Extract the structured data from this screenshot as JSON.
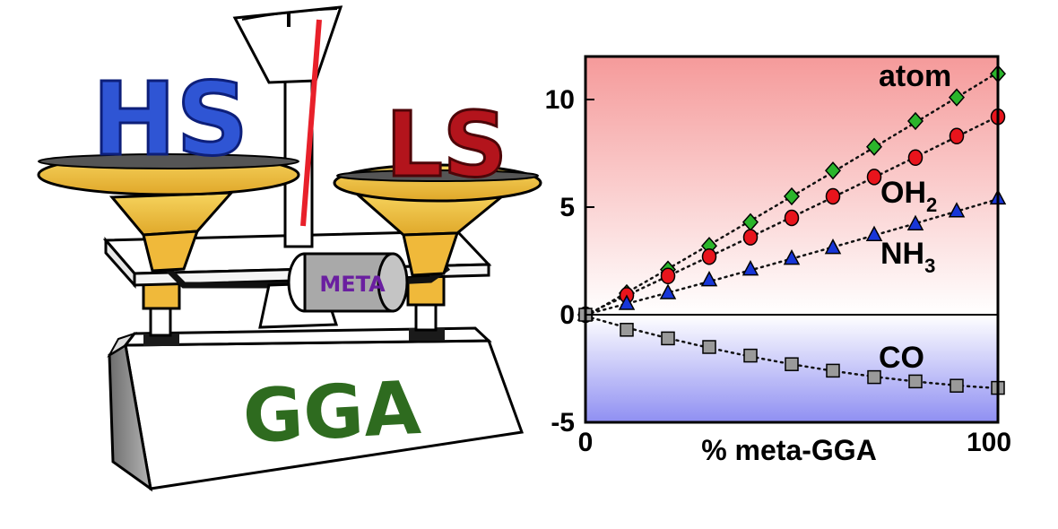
{
  "illustration": {
    "left_pan_label": "HS",
    "right_pan_label": "LS",
    "weight_label": "META",
    "base_label": "GGA",
    "colors": {
      "hs": "#2f55d4",
      "ls": "#b3141c",
      "meta_text": "#6a1fa0",
      "gga_text": "#2e6b1f",
      "pan_gold": "#f2c23a",
      "needle": "#e8202a"
    }
  },
  "chart_data": {
    "type": "scatter",
    "title": "",
    "xlabel": "% meta-GGA",
    "ylabel": "",
    "xlim": [
      0,
      100
    ],
    "ylim": [
      -5,
      12
    ],
    "x_ticks": [
      0,
      100
    ],
    "y_ticks": [
      -5,
      0,
      5,
      10
    ],
    "grid": false,
    "background": {
      "positive_color": "#f59a9a",
      "negative_color": "#8f8ff2"
    },
    "series": [
      {
        "name": "atom",
        "marker": "diamond",
        "color": "#2bb52b",
        "trend_line": "dotted",
        "x": [
          0,
          10,
          20,
          30,
          40,
          50,
          60,
          70,
          80,
          90,
          100
        ],
        "values": [
          0,
          1.0,
          2.1,
          3.2,
          4.3,
          5.5,
          6.7,
          7.8,
          9.0,
          10.1,
          11.2
        ]
      },
      {
        "name": "OH2",
        "name_main": "OH",
        "name_sub": "2",
        "marker": "circle",
        "color": "#e8141c",
        "trend_line": "dotted",
        "x": [
          0,
          10,
          20,
          30,
          40,
          50,
          60,
          70,
          80,
          90,
          100
        ],
        "values": [
          0,
          0.9,
          1.8,
          2.7,
          3.6,
          4.5,
          5.5,
          6.4,
          7.3,
          8.3,
          9.2
        ]
      },
      {
        "name": "NH3",
        "name_main": "NH",
        "name_sub": "3",
        "marker": "triangle",
        "color": "#1836d8",
        "trend_line": "dotted",
        "x": [
          0,
          10,
          20,
          30,
          40,
          50,
          60,
          70,
          80,
          90,
          100
        ],
        "values": [
          0,
          0.5,
          1.0,
          1.6,
          2.1,
          2.6,
          3.1,
          3.7,
          4.2,
          4.8,
          5.4
        ]
      },
      {
        "name": "CO",
        "marker": "square",
        "color": "#9a9a9a",
        "trend_line": "dotted",
        "x": [
          0,
          10,
          20,
          30,
          40,
          50,
          60,
          70,
          80,
          90,
          100
        ],
        "values": [
          0,
          -0.7,
          -1.1,
          -1.5,
          -1.9,
          -2.3,
          -2.6,
          -2.9,
          -3.1,
          -3.3,
          -3.4
        ]
      }
    ]
  }
}
